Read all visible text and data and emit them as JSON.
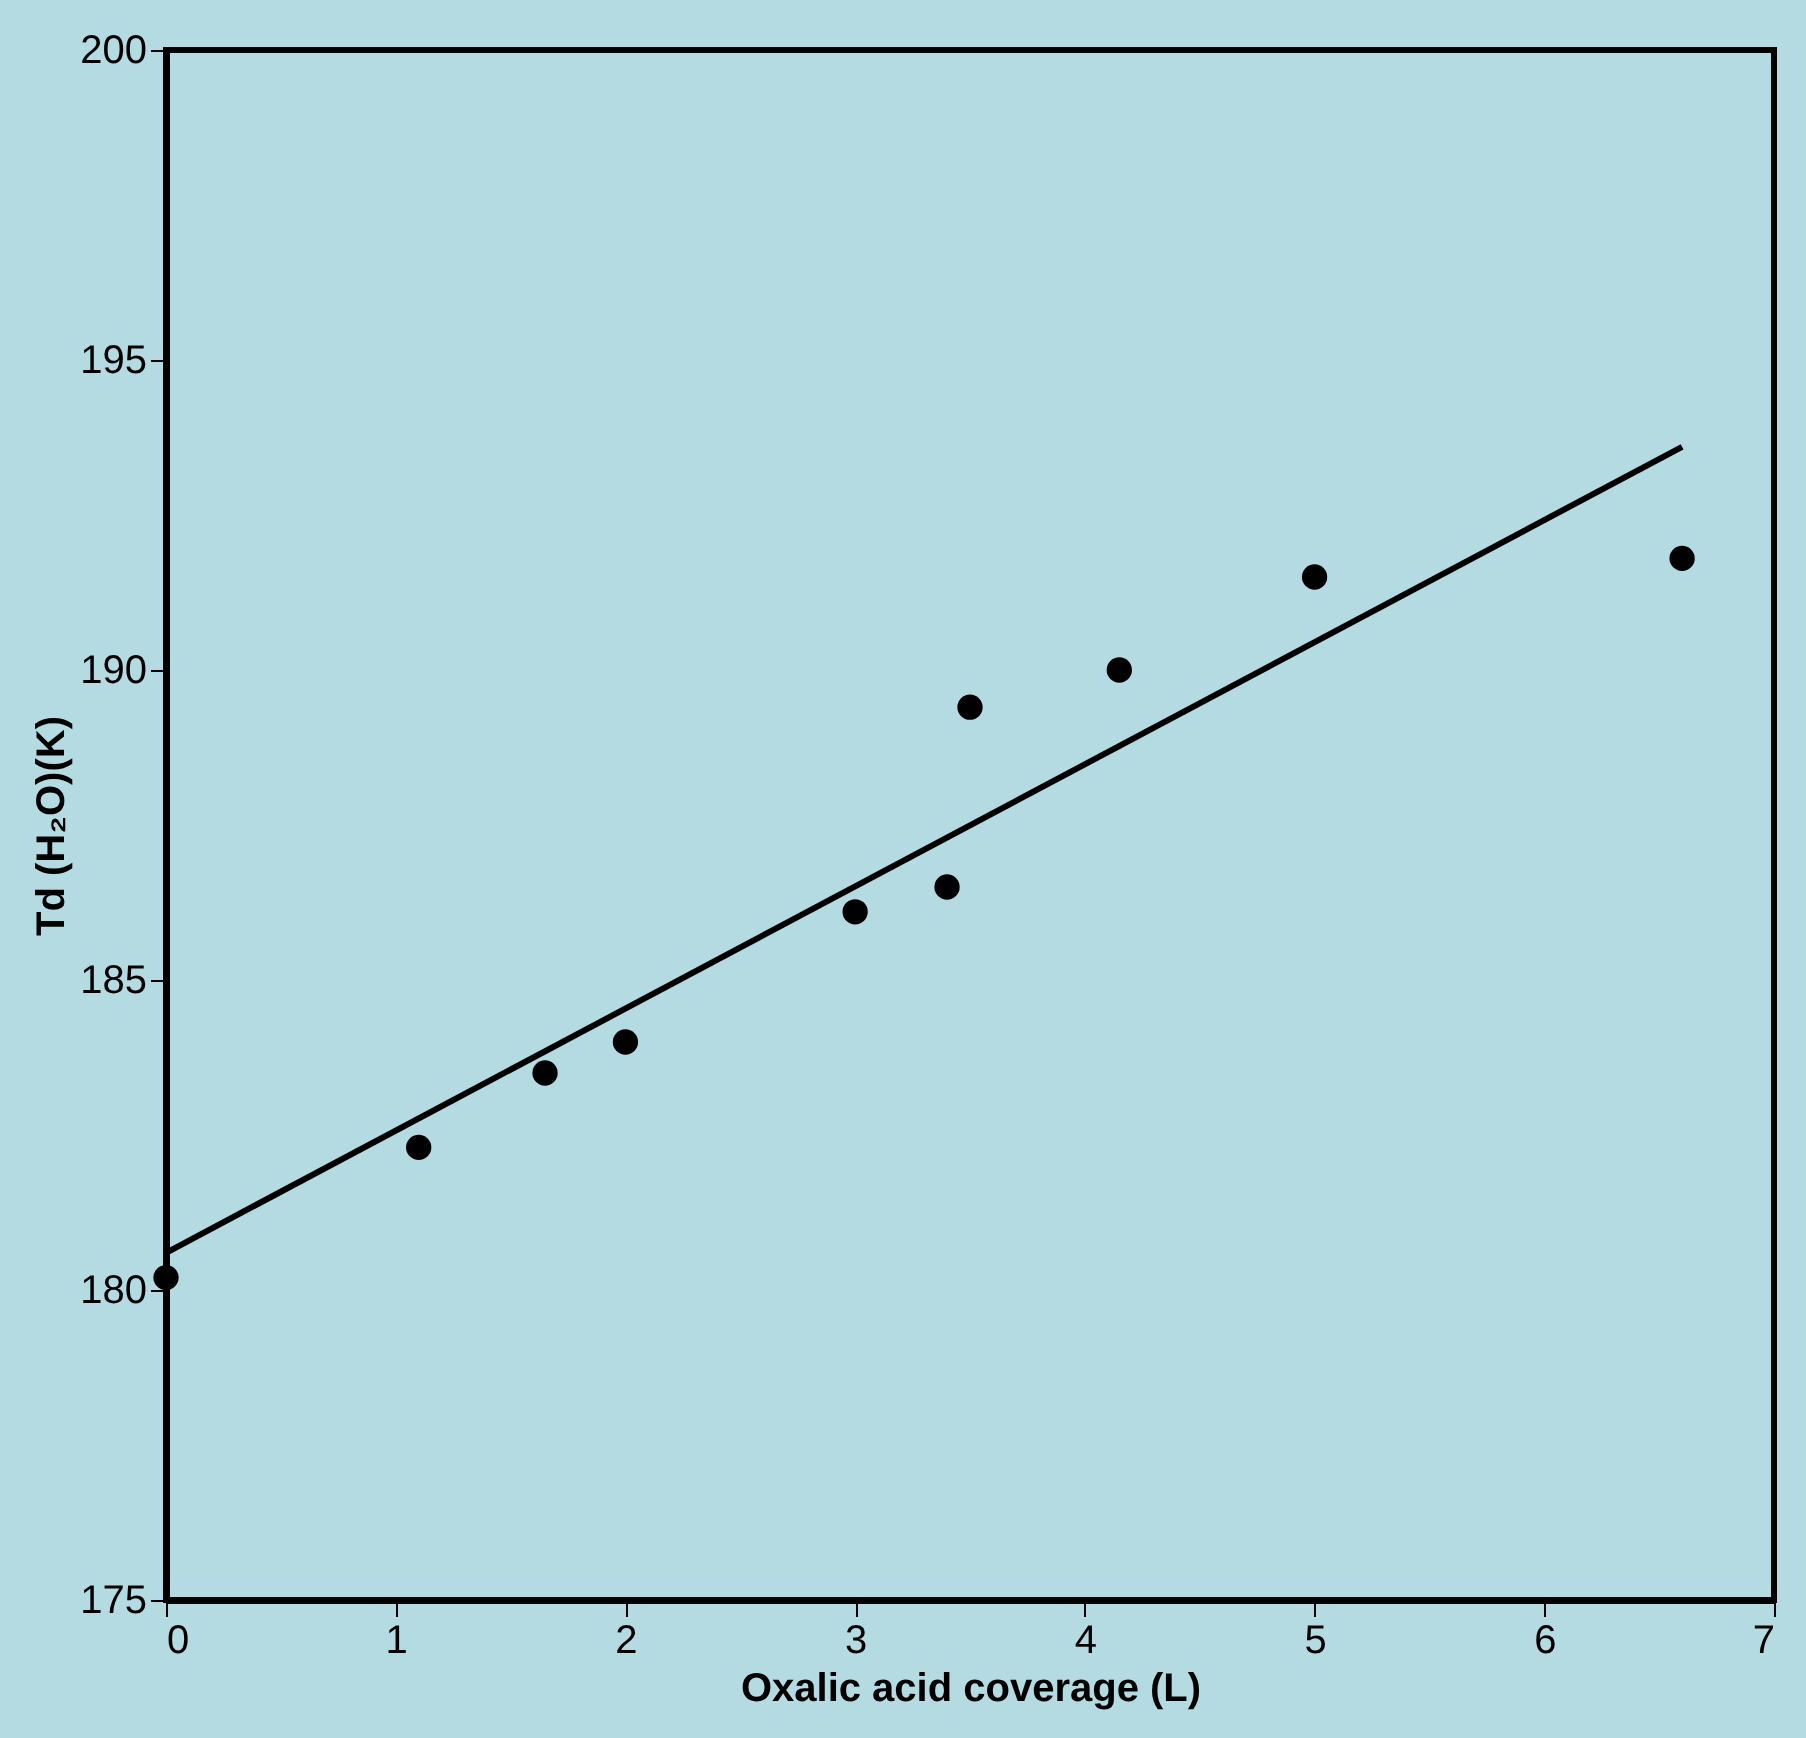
{
  "chart_data": {
    "type": "scatter",
    "xlabel": "Oxalic acid coverage (L)",
    "ylabel": "Td (H₂O)(K)",
    "xlim": [
      0,
      7
    ],
    "xticks": [
      0,
      1,
      2,
      3,
      4,
      5,
      6,
      7
    ],
    "ylim": [
      175,
      200
    ],
    "yticks": [
      175,
      180,
      185,
      190,
      195,
      200
    ],
    "grid": false,
    "series": [
      {
        "color": "#000000",
        "marker": "circle",
        "x": [
          0,
          1.1,
          1.65,
          2.0,
          3.0,
          3.4,
          3.5,
          4.15,
          5.0,
          6.6
        ],
        "values": [
          180.2,
          182.3,
          183.5,
          184.0,
          186.1,
          186.5,
          189.4,
          190.0,
          191.5,
          191.8
        ]
      },
      {
        "type": "line",
        "color": "#000000",
        "line_style": "solid",
        "x": [
          0,
          6.6
        ],
        "values": [
          180.6,
          193.6
        ]
      }
    ]
  }
}
